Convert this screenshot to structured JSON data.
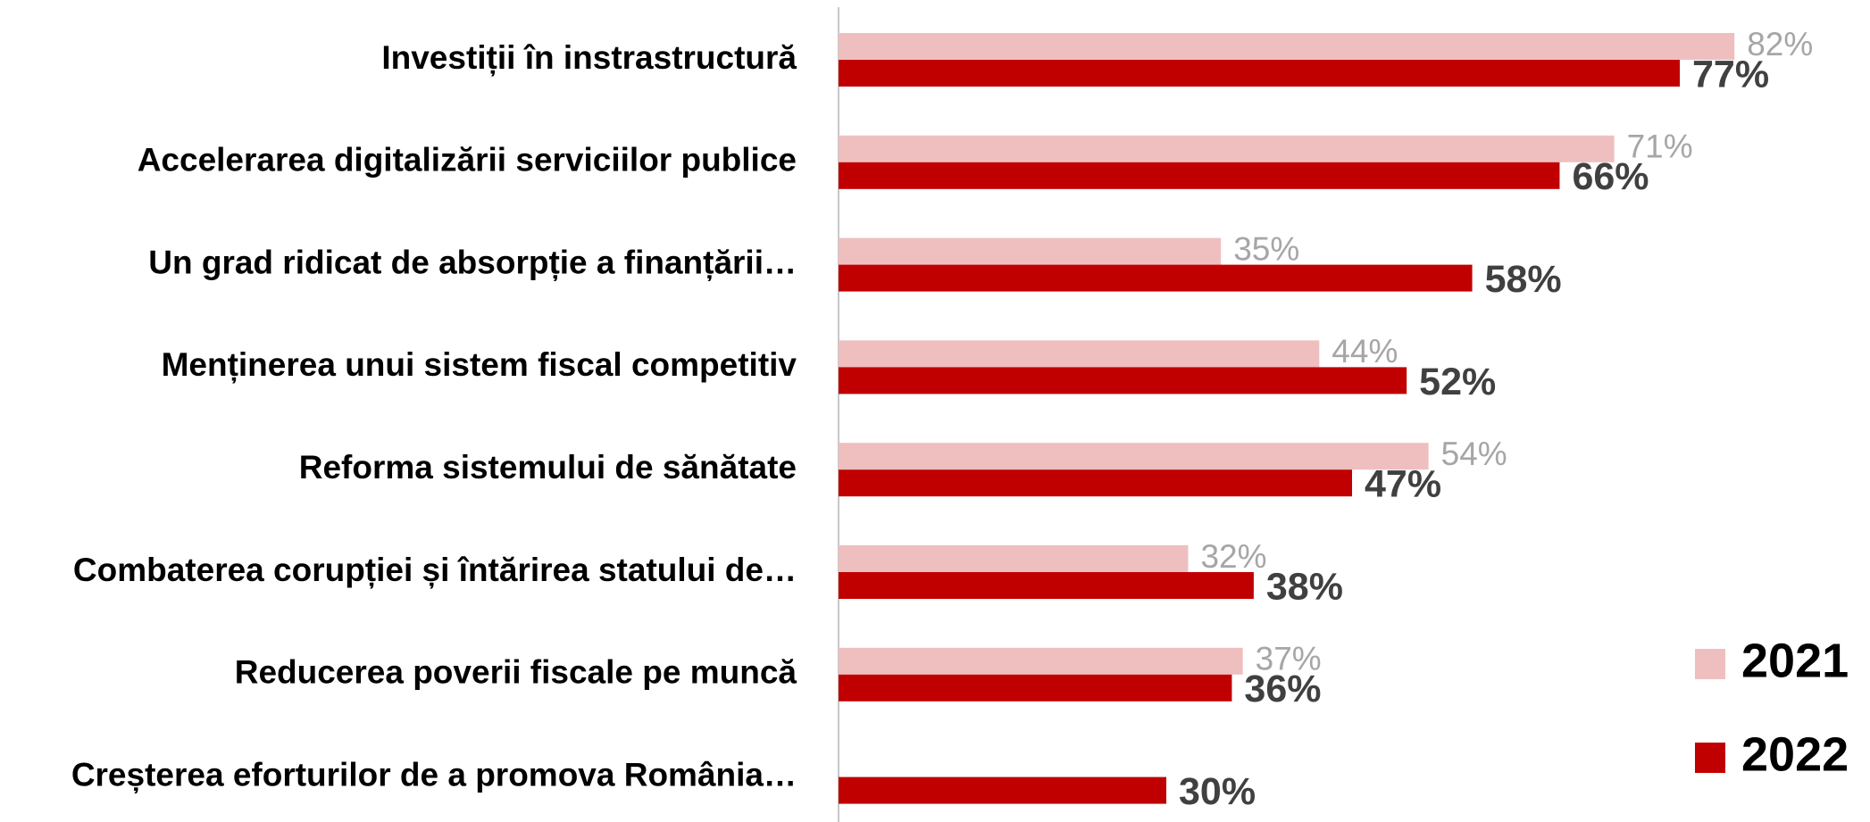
{
  "chart_data": {
    "type": "hbar",
    "categories": [
      "Investiții în instrastructură",
      "Accelerarea digitalizării serviciilor publice",
      "Un grad ridicat de absorpție a finanțării…",
      "Menținerea unui sistem fiscal competitiv",
      "Reforma sistemului de sănătate",
      "Combaterea corupției și întărirea statului de…",
      "Reducerea poverii fiscale pe muncă",
      "Creșterea eforturilor de a promova România…"
    ],
    "series": [
      {
        "name": "2021",
        "color": "#efbfbf",
        "values": [
          82,
          71,
          35,
          44,
          54,
          32,
          37,
          null
        ],
        "value_labels": [
          "82%",
          "71%",
          "35%",
          "44%",
          "54%",
          "32%",
          "37%",
          null
        ]
      },
      {
        "name": "2022",
        "color": "#c00000",
        "values": [
          77,
          66,
          58,
          52,
          47,
          38,
          36,
          30
        ],
        "value_labels": [
          "77%",
          "66%",
          "58%",
          "52%",
          "47%",
          "38%",
          "36%",
          "30%"
        ]
      }
    ],
    "xlim": [
      0,
      94
    ],
    "legend": "lower right"
  }
}
